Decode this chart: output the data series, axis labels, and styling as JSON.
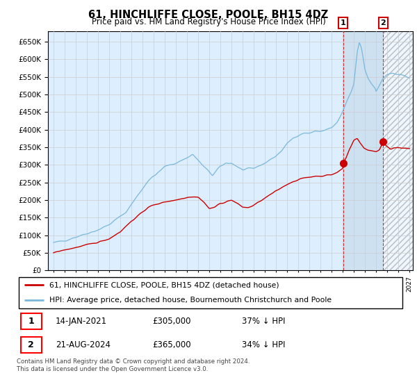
{
  "title": "61, HINCHLIFFE CLOSE, POOLE, BH15 4DZ",
  "subtitle": "Price paid vs. HM Land Registry's House Price Index (HPI)",
  "legend_line1": "61, HINCHLIFFE CLOSE, POOLE, BH15 4DZ (detached house)",
  "legend_line2": "HPI: Average price, detached house, Bournemouth Christchurch and Poole",
  "annotation1_date": "14-JAN-2021",
  "annotation1_price": "£305,000",
  "annotation1_hpi": "37% ↓ HPI",
  "annotation2_date": "21-AUG-2024",
  "annotation2_price": "£365,000",
  "annotation2_hpi": "34% ↓ HPI",
  "footnote": "Contains HM Land Registry data © Crown copyright and database right 2024.\nThis data is licensed under the Open Government Licence v3.0.",
  "hpi_color": "#7ab8db",
  "price_color": "#cc0000",
  "shade_color": "#ddeeff",
  "hatch_color": "#cccccc",
  "grid_color": "#cccccc",
  "ylim": [
    0,
    680000
  ],
  "yticks": [
    0,
    50000,
    100000,
    150000,
    200000,
    250000,
    300000,
    350000,
    400000,
    450000,
    500000,
    550000,
    600000,
    650000
  ],
  "sale1_year": 2021.04,
  "sale1_y": 305000,
  "sale2_year": 2024.64,
  "sale2_y": 365000,
  "xmin": 1995.0,
  "xmax": 2027.0
}
